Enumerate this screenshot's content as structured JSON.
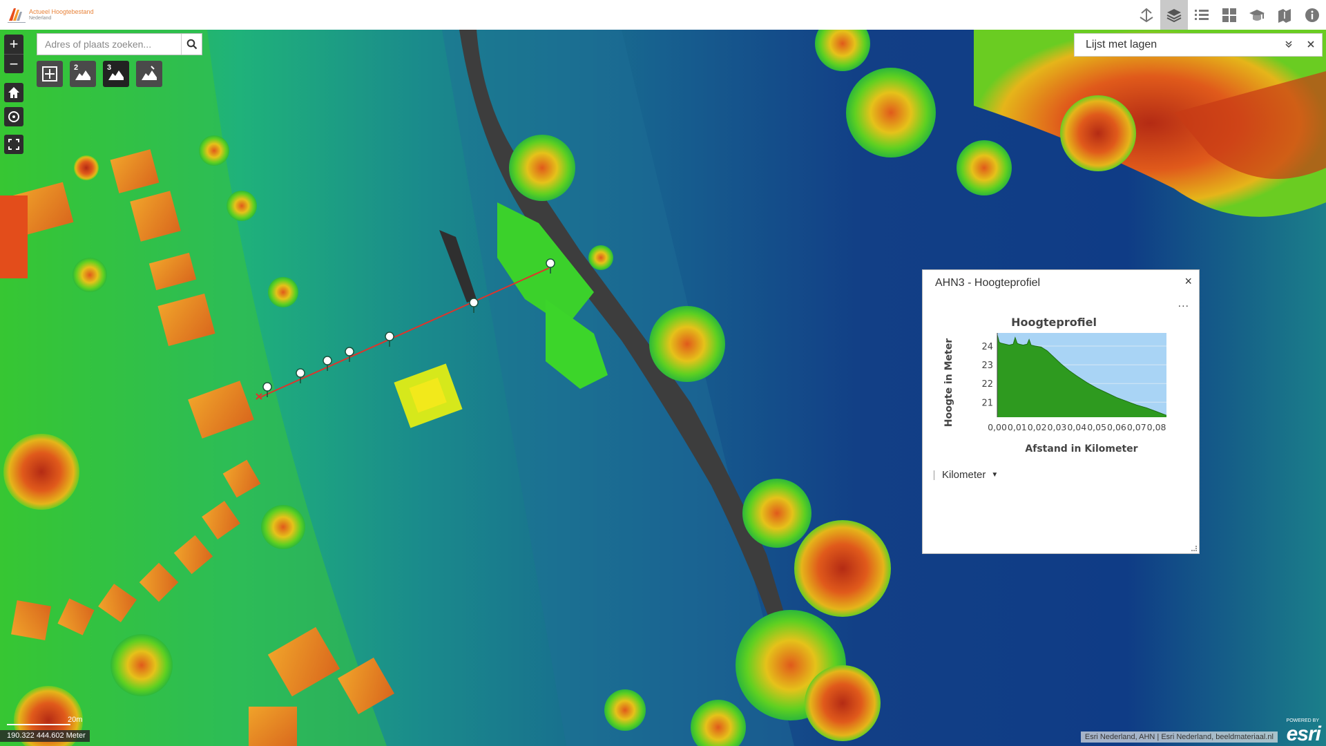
{
  "header": {
    "logo_line1": "Actueel Hoogtebestand",
    "logo_line2": "Nederland",
    "tools": [
      {
        "icon": "measure-tool-icon",
        "active": false
      },
      {
        "icon": "layers-icon",
        "active": true
      },
      {
        "icon": "legend-list-icon",
        "active": false
      },
      {
        "icon": "basemap-gallery-icon",
        "active": false
      },
      {
        "icon": "education-icon",
        "active": false
      },
      {
        "icon": "bookmark-icon",
        "active": false
      },
      {
        "icon": "info-icon",
        "active": false
      }
    ]
  },
  "search": {
    "placeholder": "Adres of plaats zoeken..."
  },
  "profile_tools": [
    {
      "icon": "profile-select-icon",
      "num": ""
    },
    {
      "icon": "profile-2-icon",
      "num": "2"
    },
    {
      "icon": "profile-3-icon",
      "num": "3"
    },
    {
      "icon": "profile-draw-icon",
      "num": ""
    }
  ],
  "layer_list": {
    "title": "Lijst met lagen"
  },
  "panel": {
    "title": "AHN3 - Hoogteprofiel",
    "close": "×",
    "more": "...",
    "unit_label": "Kilometer"
  },
  "chart_data": {
    "type": "area",
    "title": "Hoogteprofiel",
    "xlabel": "Afstand in Kilometer",
    "ylabel": "Hoogte in Meter",
    "x_ticks": [
      "0,00",
      "0,01",
      "0,02",
      "0,03",
      "0,04",
      "0,05",
      "0,06",
      "0,07",
      "0,08"
    ],
    "y_ticks": [
      "21",
      "22",
      "23",
      "24"
    ],
    "xlim": [
      0,
      0.085
    ],
    "ylim": [
      20.2,
      24.7
    ],
    "x": [
      0,
      0.001,
      0.002,
      0.004,
      0.006,
      0.008,
      0.009,
      0.01,
      0.011,
      0.013,
      0.015,
      0.016,
      0.017,
      0.019,
      0.022,
      0.025,
      0.028,
      0.032,
      0.036,
      0.04,
      0.045,
      0.05,
      0.055,
      0.06,
      0.065,
      0.07,
      0.075,
      0.08,
      0.085
    ],
    "y": [
      24.6,
      24.2,
      24.15,
      24.1,
      24.05,
      24.1,
      24.45,
      24.15,
      24.1,
      24.05,
      24.1,
      24.35,
      24.05,
      24.0,
      23.95,
      23.75,
      23.45,
      23.05,
      22.7,
      22.4,
      22.05,
      21.75,
      21.5,
      21.25,
      21.05,
      20.85,
      20.7,
      20.5,
      20.3
    ]
  },
  "map": {
    "scale_label": "20m",
    "coordinates": "190.322 444.602 Meter",
    "attribution": "Esri Nederland, AHN | Esri Nederland, beeldmateriaal.nl",
    "powered_by": "POWERED BY",
    "brand": "esri"
  }
}
